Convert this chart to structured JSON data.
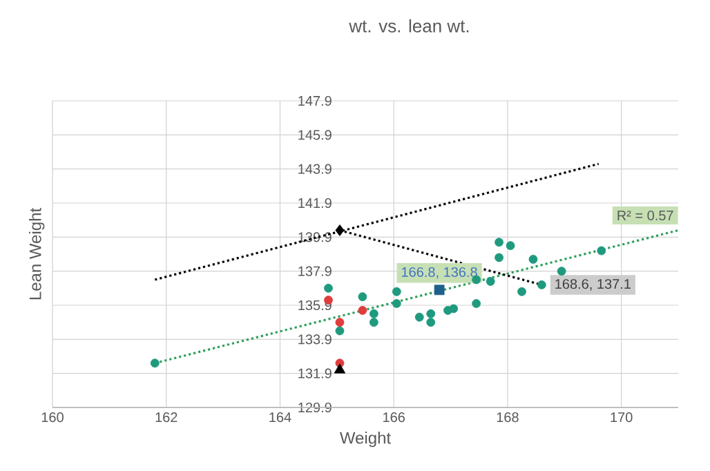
{
  "chart_data": {
    "type": "scatter",
    "title": "wt. vs. lean wt.",
    "xlabel": "Weight",
    "ylabel": "Lean Weight",
    "xlim": [
      160,
      171
    ],
    "ylim": [
      129.9,
      147.9
    ],
    "xticks": [
      160,
      162,
      164,
      166,
      168,
      170
    ],
    "yticks": [
      129.9,
      131.9,
      133.9,
      135.9,
      137.9,
      139.9,
      141.9,
      143.9,
      145.9,
      147.9
    ],
    "grid": true,
    "series": [
      {
        "type": "line",
        "color": "#2e9e5b",
        "line_style": "dotted",
        "marker": "none",
        "x": [
          161.8,
          171
        ],
        "values": [
          132.5,
          140.3
        ]
      },
      {
        "type": "line",
        "color": "#000000",
        "line_style": "dotted",
        "marker": "none",
        "x": [
          161.8,
          169.6
        ],
        "values": [
          137.4,
          144.2
        ]
      },
      {
        "type": "line",
        "color": "#000000",
        "line_style": "dotted",
        "marker": "none",
        "x": [
          165.05,
          168.6
        ],
        "values": [
          140.3,
          137.1
        ]
      },
      {
        "color": "#1f9a7f",
        "marker": "circle",
        "x": [
          161.8,
          164.85,
          165.05,
          165.45,
          165.65,
          165.65,
          166.05,
          166.05,
          166.45,
          166.65,
          166.65,
          166.95,
          167.05,
          167.45,
          167.45,
          167.7,
          168.25,
          168.6,
          168.95,
          167.85,
          168.05,
          167.85,
          168.45,
          169.65
        ],
        "values": [
          132.5,
          136.9,
          134.4,
          136.4,
          135.4,
          134.9,
          136.7,
          136.0,
          135.2,
          135.4,
          134.9,
          135.6,
          135.7,
          136.0,
          137.4,
          137.3,
          136.7,
          137.1,
          137.9,
          139.6,
          139.4,
          138.7,
          138.6,
          139.1
        ]
      },
      {
        "color": "#e03c3c",
        "marker": "circle",
        "x": [
          164.85,
          165.05,
          165.45,
          165.05
        ],
        "values": [
          136.2,
          134.9,
          135.6,
          132.5
        ]
      },
      {
        "color": "#1f5f8b",
        "marker": "square",
        "x": [
          166.8
        ],
        "values": [
          136.8
        ]
      },
      {
        "color": "#000000",
        "marker": "triangle",
        "x": [
          165.05
        ],
        "values": [
          132.1
        ]
      },
      {
        "color": "#000000",
        "marker": "diamond",
        "x": [
          165.05
        ],
        "values": [
          140.3
        ]
      }
    ],
    "annotations": [
      {
        "text": "R² = 0.57",
        "x": 171,
        "y": 140.3
      },
      {
        "text": "166.8, 136.8",
        "x": 166.8,
        "y": 136.8
      },
      {
        "text": "168.6, 137.1",
        "x": 168.6,
        "y": 137.1
      }
    ]
  }
}
